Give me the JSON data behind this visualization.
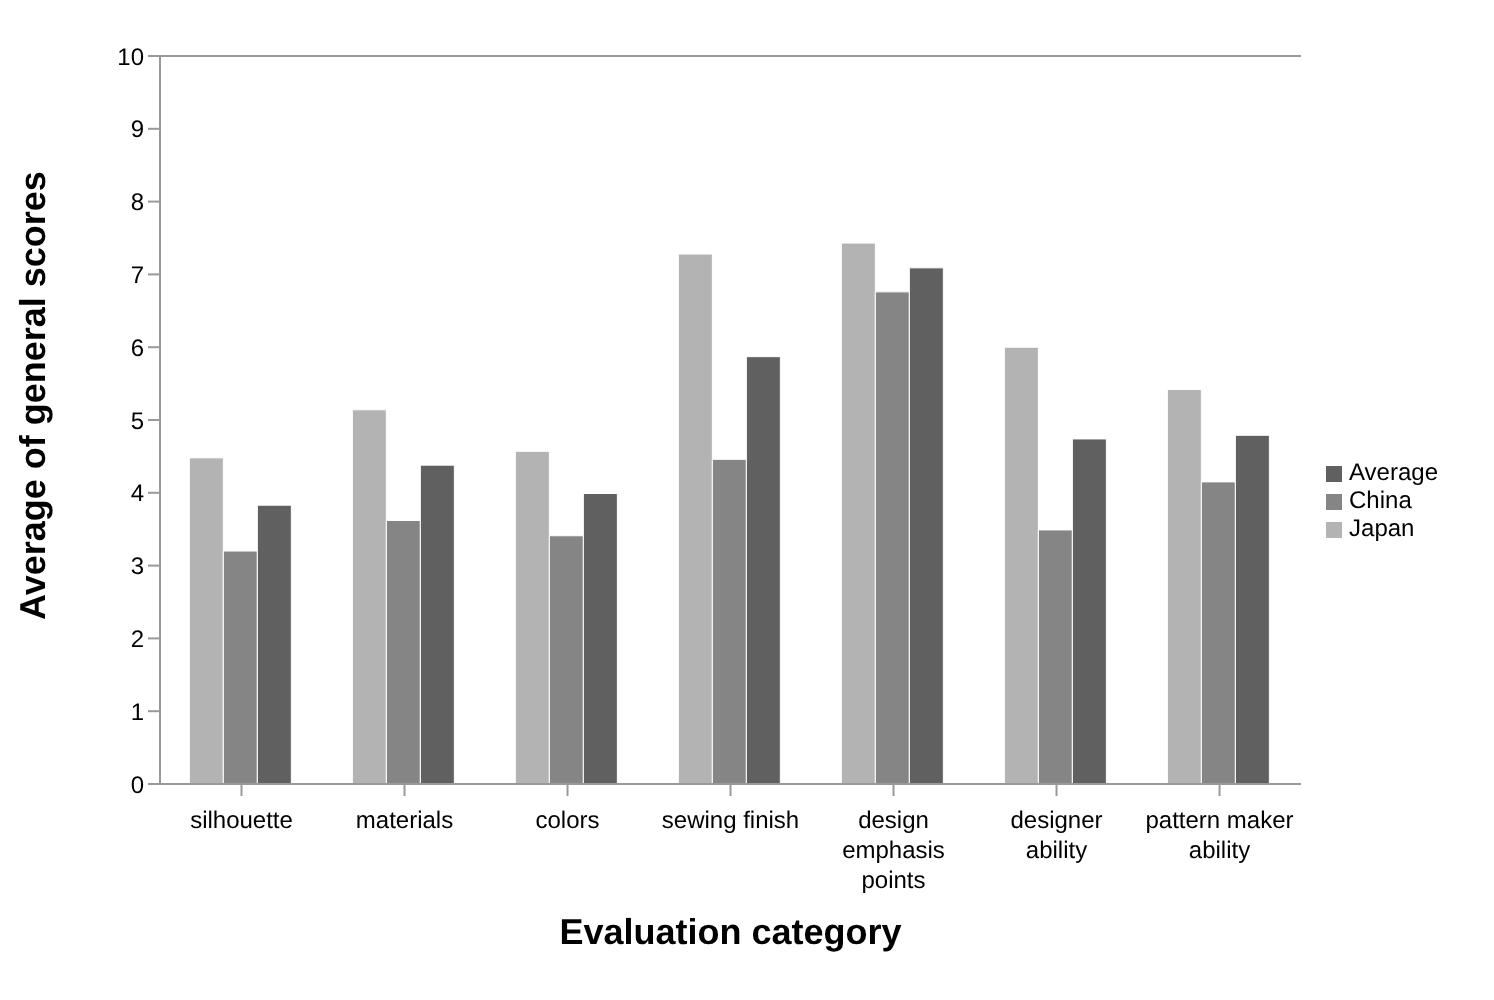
{
  "chart_data": {
    "type": "bar",
    "xlabel": "Evaluation category",
    "ylabel": "Average of general scores",
    "categories": [
      "silhouette",
      "materials",
      "colors",
      "sewing finish",
      "design emphasis points",
      "designer ability",
      "pattern maker ability"
    ],
    "series": [
      {
        "name": "Japan",
        "color": "#b3b3b3",
        "values": [
          4.48,
          5.14,
          4.57,
          7.28,
          7.43,
          6.0,
          5.42
        ]
      },
      {
        "name": "China",
        "color": "#858585",
        "values": [
          3.2,
          3.62,
          3.41,
          4.46,
          6.76,
          3.49,
          4.15
        ]
      },
      {
        "name": "Average",
        "color": "#606060",
        "values": [
          3.83,
          4.38,
          3.99,
          5.87,
          7.09,
          4.74,
          4.79
        ]
      }
    ],
    "ylim": [
      0,
      10
    ],
    "yticks": [
      0,
      1,
      2,
      3,
      4,
      5,
      6,
      7,
      8,
      9,
      10
    ],
    "grid": false,
    "legend": "right"
  }
}
